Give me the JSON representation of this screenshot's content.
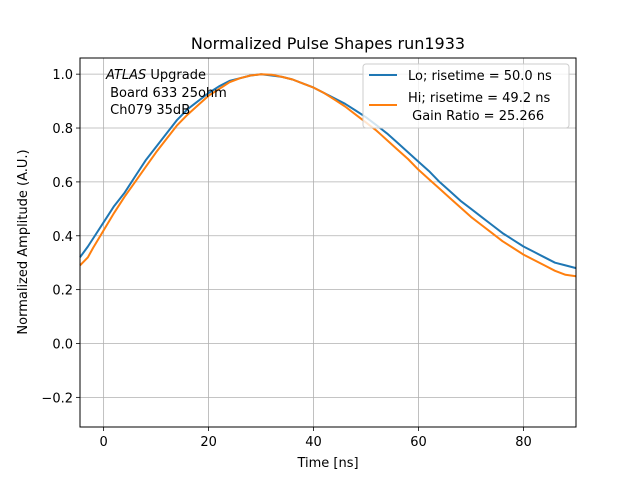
{
  "chart_data": {
    "type": "line",
    "title": "Normalized Pulse Shapes run1933",
    "xlabel": "Time [ns]",
    "ylabel": "Normalized Amplitude (A.U.)",
    "xlim": [
      -4.5,
      90
    ],
    "ylim": [
      -0.31,
      1.06
    ],
    "xticks": [
      0,
      20,
      40,
      60,
      80
    ],
    "yticks": [
      -0.2,
      0.0,
      0.2,
      0.4,
      0.6,
      0.8,
      1.0
    ],
    "xtick_labels": [
      "0",
      "20",
      "40",
      "60",
      "80"
    ],
    "ytick_labels": [
      "−0.2",
      "0.0",
      "0.2",
      "0.4",
      "0.6",
      "0.8",
      "1.0"
    ],
    "grid": true,
    "legend_position": "top-right",
    "annotation": {
      "italic_part": "ATLAS",
      "line1_rest": " Upgrade",
      "line2": " Board 633 25ohm",
      "line3": " Ch079 35dB"
    },
    "series": [
      {
        "name": "Lo; risetime = 50.0 ns",
        "color": "#1f77b4",
        "x": [
          -4.5,
          -3,
          -2,
          0,
          2,
          4,
          6,
          8,
          10,
          12,
          14,
          16,
          18,
          20,
          22,
          24,
          26,
          28,
          30,
          32,
          34,
          36,
          38,
          40,
          42,
          44,
          46,
          48,
          50,
          52,
          54,
          56,
          58,
          60,
          62,
          64,
          66,
          68,
          70,
          72,
          74,
          76,
          78,
          80,
          82,
          84,
          86,
          88,
          90
        ],
        "y": [
          0.32,
          0.36,
          0.39,
          0.45,
          0.51,
          0.56,
          0.62,
          0.68,
          0.73,
          0.78,
          0.83,
          0.87,
          0.9,
          0.93,
          0.955,
          0.975,
          0.985,
          0.995,
          1.0,
          0.995,
          0.99,
          0.98,
          0.965,
          0.95,
          0.93,
          0.91,
          0.89,
          0.865,
          0.84,
          0.81,
          0.78,
          0.745,
          0.71,
          0.675,
          0.64,
          0.6,
          0.565,
          0.53,
          0.5,
          0.47,
          0.44,
          0.41,
          0.385,
          0.36,
          0.34,
          0.32,
          0.3,
          0.29,
          0.28
        ]
      },
      {
        "name": "Hi; risetime = 49.2 ns\n Gain Ratio = 25.266",
        "color": "#ff7f0e",
        "x": [
          -4.5,
          -3,
          -2,
          0,
          2,
          4,
          6,
          8,
          10,
          12,
          14,
          16,
          18,
          20,
          22,
          24,
          26,
          28,
          30,
          32,
          34,
          36,
          38,
          40,
          42,
          44,
          46,
          48,
          50,
          52,
          54,
          56,
          58,
          60,
          62,
          64,
          66,
          68,
          70,
          72,
          74,
          76,
          78,
          80,
          82,
          84,
          86,
          88,
          90
        ],
        "y": [
          0.29,
          0.32,
          0.355,
          0.42,
          0.485,
          0.545,
          0.6,
          0.655,
          0.71,
          0.76,
          0.81,
          0.85,
          0.885,
          0.92,
          0.945,
          0.97,
          0.985,
          0.995,
          1.0,
          0.998,
          0.99,
          0.98,
          0.965,
          0.95,
          0.93,
          0.905,
          0.88,
          0.85,
          0.82,
          0.79,
          0.755,
          0.72,
          0.685,
          0.645,
          0.61,
          0.575,
          0.54,
          0.505,
          0.47,
          0.44,
          0.41,
          0.38,
          0.355,
          0.33,
          0.31,
          0.29,
          0.27,
          0.255,
          0.25
        ]
      }
    ]
  }
}
